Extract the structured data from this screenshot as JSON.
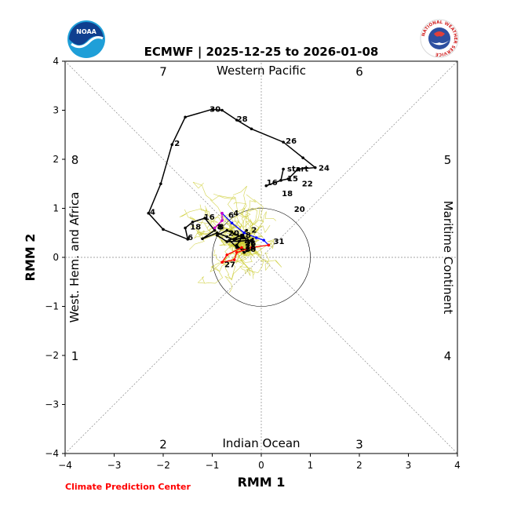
{
  "header": {
    "title": "ECMWF | 2025-12-25 to 2026-01-08"
  },
  "logos": {
    "left": "NOAA",
    "right": "NATIONAL WEATHER SERVICE"
  },
  "footer": {
    "credit": "Climate Prediction Center"
  },
  "colors": {
    "observed": "#000000",
    "forecast_wk1": "#0000ff",
    "forecast_wk2": "#ff0000",
    "transition": "#cc00cc",
    "ensemble": "#cccc33",
    "credit": "#ff0000"
  },
  "chart_data": {
    "type": "line",
    "title": "ECMWF | 2025-12-25 to 2026-01-08",
    "xlabel": "RMM 1",
    "ylabel": "RMM 2",
    "xlim": [
      -4,
      4
    ],
    "ylim": [
      -4,
      4
    ],
    "xticks": [
      "−4",
      "−3",
      "−2",
      "−1",
      "0",
      "1",
      "2",
      "3",
      "4"
    ],
    "yticks": [
      "−4",
      "−3",
      "−2",
      "−1",
      "0",
      "1",
      "2",
      "3",
      "4"
    ],
    "phase_numbers": [
      {
        "text": "1",
        "x": -3.8,
        "y": -2.0
      },
      {
        "text": "2",
        "x": -2.0,
        "y": -3.8
      },
      {
        "text": "3",
        "x": 2.0,
        "y": -3.8
      },
      {
        "text": "4",
        "x": 3.8,
        "y": -2.0
      },
      {
        "text": "5",
        "x": 3.8,
        "y": 2.0
      },
      {
        "text": "6",
        "x": 2.0,
        "y": 3.8
      },
      {
        "text": "7",
        "x": -2.0,
        "y": 3.8
      },
      {
        "text": "8",
        "x": -3.8,
        "y": 2.0
      }
    ],
    "region_labels": {
      "top": "Western Pacific",
      "bottom": "Indian Ocean",
      "left": "West. Hem. and Africa",
      "right": "Maritime Continent"
    },
    "unit_circle_radius": 1,
    "observed": {
      "points": [
        [
          0.45,
          1.8
        ],
        [
          0.4,
          1.57
        ],
        [
          0.1,
          1.46
        ],
        [
          0.4,
          1.57
        ],
        [
          0.55,
          1.6
        ],
        [
          0.75,
          1.8
        ],
        [
          1.1,
          1.83
        ],
        [
          0.85,
          2.03
        ],
        [
          0.45,
          2.35
        ],
        [
          -0.2,
          2.62
        ],
        [
          -0.5,
          2.8
        ],
        [
          -0.8,
          3.0
        ],
        [
          -1.0,
          3.02
        ],
        [
          -1.55,
          2.86
        ],
        [
          -1.82,
          2.3
        ],
        [
          -2.05,
          1.5
        ],
        [
          -2.3,
          0.9
        ],
        [
          -2.0,
          0.57
        ],
        [
          -1.5,
          0.37
        ],
        [
          -1.55,
          0.6
        ],
        [
          -1.4,
          0.72
        ],
        [
          -1.15,
          0.8
        ],
        [
          -0.95,
          0.55
        ],
        [
          -1.2,
          0.38
        ],
        [
          -0.9,
          0.5
        ],
        [
          -0.7,
          0.42
        ],
        [
          -0.55,
          0.35
        ],
        [
          -0.4,
          0.4
        ],
        [
          -0.5,
          0.25
        ],
        [
          -0.35,
          0.1
        ],
        [
          -0.15,
          0.18
        ],
        [
          -0.2,
          0.35
        ],
        [
          -0.45,
          0.33
        ],
        [
          -0.7,
          0.32
        ],
        [
          -0.9,
          0.45
        ],
        [
          -0.7,
          0.55
        ],
        [
          -0.55,
          0.48
        ],
        [
          -0.35,
          0.4
        ],
        [
          -0.25,
          0.3
        ],
        [
          -0.3,
          0.15
        ],
        [
          -0.5,
          0.2
        ],
        [
          -0.65,
          0.35
        ],
        [
          -0.4,
          0.45
        ],
        [
          -0.3,
          0.55
        ]
      ],
      "labels": [
        {
          "text": "start",
          "x": 0.48,
          "y": 1.8
        },
        {
          "text": "15",
          "x": 0.48,
          "y": 1.6
        },
        {
          "text": "16",
          "x": 0.06,
          "y": 1.52
        },
        {
          "text": "18",
          "x": 0.37,
          "y": 1.3
        },
        {
          "text": "20",
          "x": 0.62,
          "y": 0.98
        },
        {
          "text": "22",
          "x": 0.78,
          "y": 1.5
        },
        {
          "text": "24",
          "x": 1.12,
          "y": 1.82
        },
        {
          "text": "26",
          "x": 0.45,
          "y": 2.37
        },
        {
          "text": "28",
          "x": -0.55,
          "y": 2.82
        },
        {
          "text": "30",
          "x": -1.1,
          "y": 3.02
        },
        {
          "text": "2",
          "x": -1.82,
          "y": 2.32
        },
        {
          "text": "4",
          "x": -2.32,
          "y": 0.92
        },
        {
          "text": "6",
          "x": -1.55,
          "y": 0.4
        },
        {
          "text": "8",
          "x": -0.95,
          "y": 0.62
        },
        {
          "text": "16",
          "x": -1.22,
          "y": 0.82
        },
        {
          "text": "18",
          "x": -1.5,
          "y": 0.62
        },
        {
          "text": "20",
          "x": -0.72,
          "y": 0.49
        },
        {
          "text": "22",
          "x": -0.6,
          "y": 0.42
        },
        {
          "text": "24",
          "x": -0.4,
          "y": 0.34
        },
        {
          "text": "26",
          "x": -0.38,
          "y": 0.28
        },
        {
          "text": "28",
          "x": -0.38,
          "y": 0.22
        },
        {
          "text": "30",
          "x": -0.38,
          "y": 0.16
        },
        {
          "text": "2",
          "x": -0.25,
          "y": 0.55
        },
        {
          "text": "8",
          "x": -0.37,
          "y": 0.45
        }
      ]
    },
    "forecast": {
      "blue_points": [
        [
          -0.8,
          0.9
        ],
        [
          -0.6,
          0.7
        ],
        [
          -0.35,
          0.5
        ],
        [
          -0.1,
          0.4
        ],
        [
          0.05,
          0.35
        ],
        [
          0.15,
          0.25
        ]
      ],
      "red_points": [
        [
          0.15,
          0.25
        ],
        [
          -0.2,
          0.2
        ],
        [
          -0.5,
          0.1
        ],
        [
          -0.55,
          -0.05
        ],
        [
          -0.8,
          -0.1
        ],
        [
          -0.7,
          0.05
        ],
        [
          -0.4,
          0.2
        ]
      ],
      "magenta_points": [
        [
          -0.95,
          0.6
        ],
        [
          -0.8,
          0.75
        ],
        [
          -0.8,
          0.9
        ]
      ],
      "labels": [
        {
          "text": "4",
          "x": -0.62,
          "y": 0.9
        },
        {
          "text": "6",
          "x": -0.72,
          "y": 0.86
        },
        {
          "text": "8",
          "x": -0.92,
          "y": 0.62
        },
        {
          "text": "31",
          "x": 0.2,
          "y": 0.32
        },
        {
          "text": "27",
          "x": -0.8,
          "y": -0.15
        }
      ]
    },
    "ensemble_members": 50
  }
}
